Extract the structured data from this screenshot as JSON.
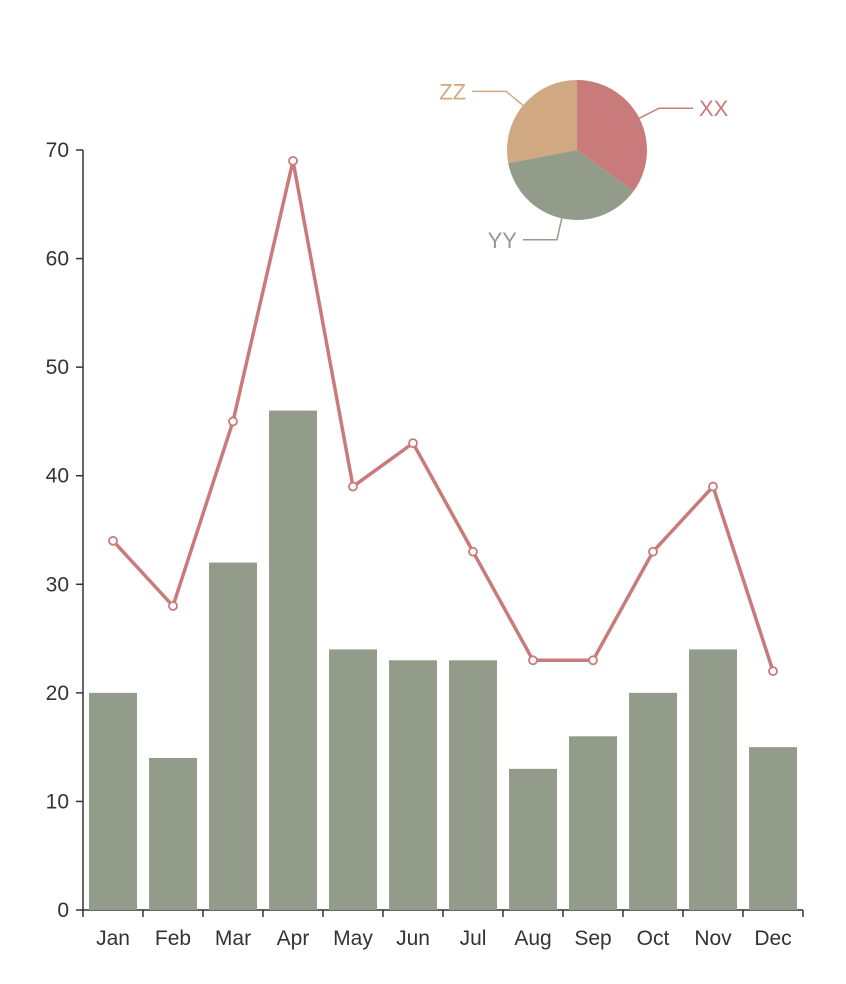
{
  "chart_data": [
    {
      "type": "bar",
      "categories": [
        "Jan",
        "Feb",
        "Mar",
        "Apr",
        "May",
        "Jun",
        "Jul",
        "Aug",
        "Sep",
        "Oct",
        "Nov",
        "Dec"
      ],
      "series": [
        {
          "values": [
            20,
            14,
            32,
            46,
            24,
            23,
            23,
            13,
            16,
            20,
            24,
            15
          ],
          "color": "#939c8b"
        }
      ],
      "ylim": [
        0,
        70
      ],
      "yticks": [
        0,
        10,
        20,
        30,
        40,
        50,
        60,
        70
      ],
      "grid": false
    },
    {
      "type": "line",
      "categories": [
        "Jan",
        "Feb",
        "Mar",
        "Apr",
        "May",
        "Jun",
        "Jul",
        "Aug",
        "Sep",
        "Oct",
        "Nov",
        "Dec"
      ],
      "series": [
        {
          "values": [
            34,
            28,
            45,
            69,
            39,
            43,
            33,
            23,
            23,
            33,
            39,
            22
          ],
          "color": "#c97b7b"
        }
      ],
      "ylim": [
        0,
        70
      ]
    },
    {
      "type": "pie",
      "slices": [
        {
          "label": "XX",
          "value": 35,
          "color": "#c97b7b"
        },
        {
          "label": "YY",
          "value": 37,
          "color": "#939c8b"
        },
        {
          "label": "ZZ",
          "value": 28,
          "color": "#d0a983"
        }
      ]
    }
  ]
}
